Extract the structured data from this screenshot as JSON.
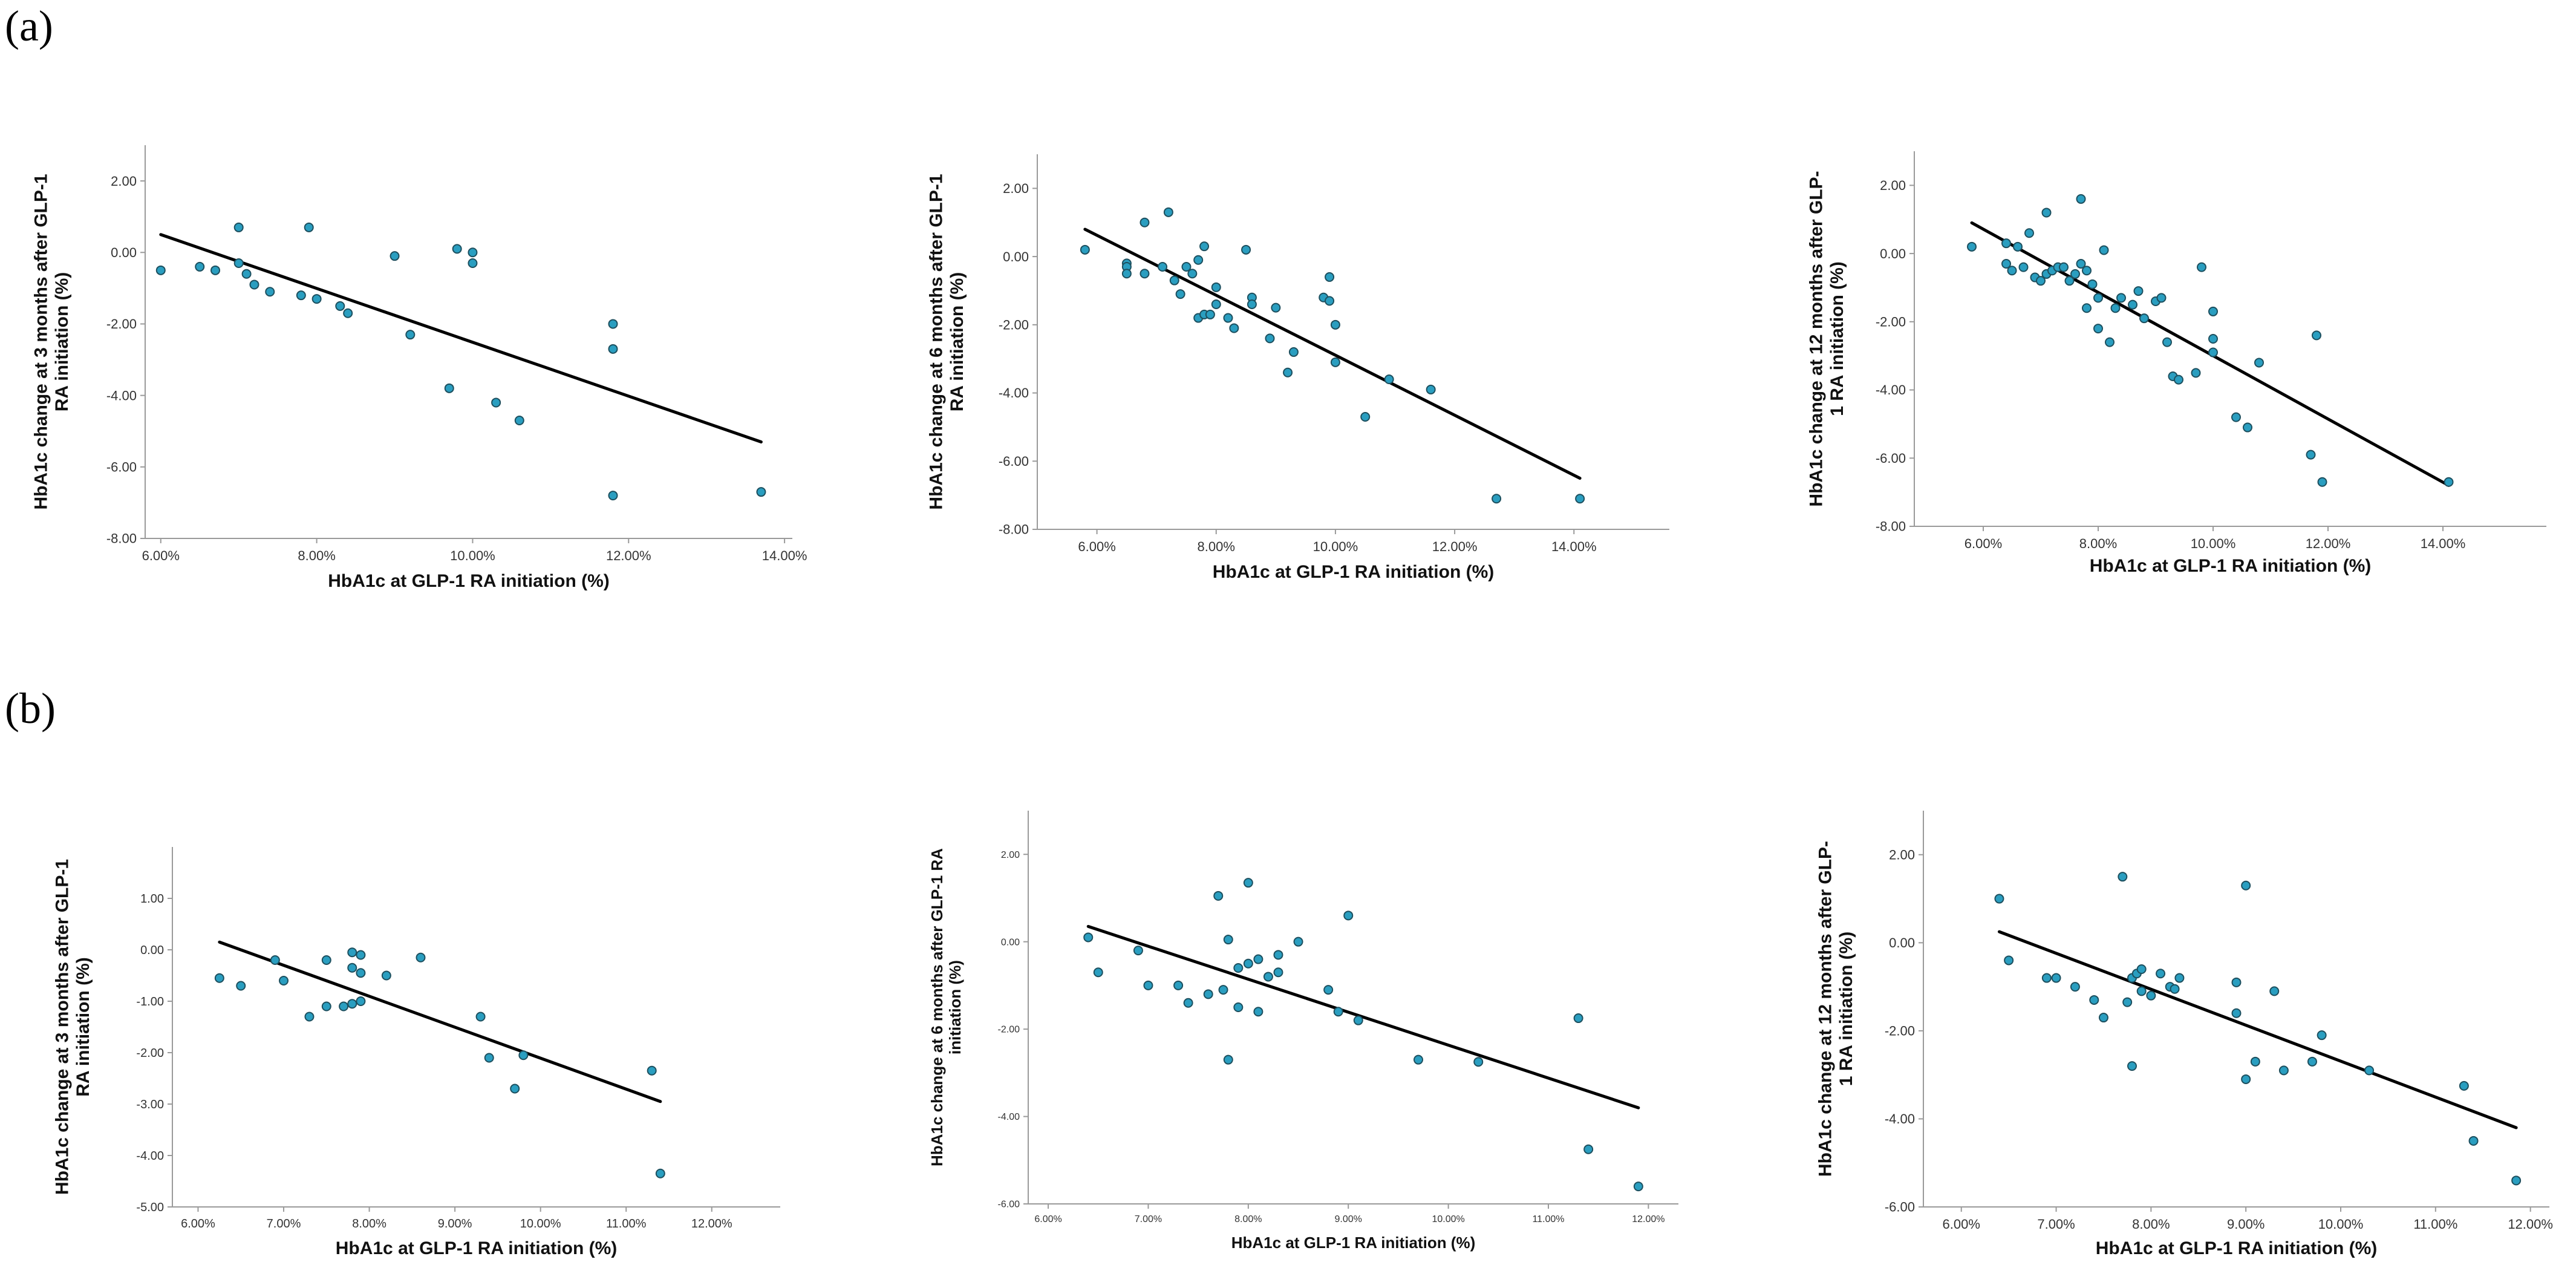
{
  "panel_labels": {
    "a": "(a)",
    "b": "(b)"
  },
  "colors": {
    "point_fill": "#2a9ec0",
    "point_stroke": "#1d4f5e",
    "fit_line": "#000000",
    "axis": "#9a9a9a"
  },
  "chart_data": [
    {
      "id": "a1",
      "type": "scatter",
      "xlabel": "HbA1c at GLP-1 RA initiation (%)",
      "ylabel": [
        "HbA1c change at 3 months after GLP-1",
        "RA initiation (%)"
      ],
      "xlim": [
        5.8,
        14.1
      ],
      "ylim": [
        -8.0,
        3.0
      ],
      "xticks": [
        6,
        8,
        10,
        12,
        14
      ],
      "xtick_labels": [
        "6.00%",
        "8.00%",
        "10.00%",
        "12.00%",
        "14.00%"
      ],
      "yticks": [
        2,
        0,
        -2,
        -4,
        -6,
        -8
      ],
      "ytick_labels": [
        "2.00",
        "0.00",
        "-2.00",
        "-4.00",
        "-6.00",
        "-8.00"
      ],
      "fit": {
        "x": [
          6.0,
          13.7
        ],
        "y": [
          0.5,
          -5.3
        ]
      },
      "x": [
        6.0,
        6.5,
        6.7,
        7.0,
        7.0,
        7.1,
        7.2,
        7.4,
        7.8,
        7.9,
        8.0,
        8.3,
        8.4,
        9.0,
        9.2,
        9.7,
        9.8,
        10.0,
        10.0,
        10.3,
        10.6,
        11.8,
        11.8,
        11.8,
        13.7
      ],
      "y": [
        -0.5,
        -0.4,
        -0.5,
        0.7,
        -0.3,
        -0.6,
        -0.9,
        -1.1,
        -1.2,
        0.7,
        -1.3,
        -1.5,
        -1.7,
        -0.1,
        -2.3,
        -3.8,
        0.1,
        0.0,
        -0.3,
        -4.2,
        -4.7,
        -2.0,
        -2.7,
        -6.8,
        -6.7
      ]
    },
    {
      "id": "a2",
      "type": "scatter",
      "xlabel": "HbA1c at GLP-1 RA initiation (%)",
      "ylabel": [
        "HbA1c change at 6 months after GLP-1",
        "RA initiation (%)"
      ],
      "xlim": [
        5.0,
        15.6
      ],
      "ylim": [
        -8.0,
        3.0
      ],
      "xticks": [
        6,
        8,
        10,
        12,
        14
      ],
      "xtick_labels": [
        "6.00%",
        "8.00%",
        "10.00%",
        "12.00%",
        "14.00%"
      ],
      "yticks": [
        2,
        0,
        -2,
        -4,
        -6,
        -8
      ],
      "ytick_labels": [
        "2.00",
        "0.00",
        "-2.00",
        "-4.00",
        "-6.00",
        "-8.00"
      ],
      "fit": {
        "x": [
          5.8,
          14.1
        ],
        "y": [
          0.8,
          -6.5
        ]
      },
      "x": [
        5.8,
        6.5,
        6.5,
        6.5,
        6.8,
        6.8,
        7.1,
        7.2,
        7.3,
        7.4,
        7.5,
        7.6,
        7.7,
        7.7,
        7.8,
        7.8,
        7.9,
        8.0,
        8.0,
        8.2,
        8.3,
        8.5,
        8.6,
        8.6,
        8.9,
        9.0,
        9.2,
        9.3,
        9.8,
        9.9,
        9.9,
        10.0,
        10.0,
        10.5,
        10.9,
        11.6,
        12.7,
        14.1
      ],
      "y": [
        0.2,
        -0.2,
        -0.3,
        -0.5,
        1.0,
        -0.5,
        -0.3,
        1.3,
        -0.7,
        -1.1,
        -0.3,
        -0.5,
        -0.1,
        -1.8,
        0.3,
        -1.7,
        -1.7,
        -1.4,
        -0.9,
        -1.8,
        -2.1,
        0.2,
        -1.2,
        -1.4,
        -2.4,
        -1.5,
        -3.4,
        -2.8,
        -1.2,
        -0.6,
        -1.3,
        -3.1,
        -2.0,
        -4.7,
        -3.6,
        -3.9,
        -7.1,
        -7.1
      ],
      "_note": "approximate values read from plot"
    },
    {
      "id": "a3",
      "type": "scatter",
      "xlabel": "HbA1c at GLP-1 RA initiation (%)",
      "ylabel": [
        "HbA1c change at 12 months after GLP-",
        "1 RA initiation (%)"
      ],
      "xlim": [
        4.8,
        15.8
      ],
      "ylim": [
        -8.0,
        3.0
      ],
      "xticks": [
        6,
        8,
        10,
        12,
        14
      ],
      "xtick_labels": [
        "6.00%",
        "8.00%",
        "10.00%",
        "12.00%",
        "14.00%"
      ],
      "yticks": [
        2,
        0,
        -2,
        -4,
        -6,
        -8
      ],
      "ytick_labels": [
        "2.00",
        "0.00",
        "-2.00",
        "-4.00",
        "-6.00",
        "-8.00"
      ],
      "fit": {
        "x": [
          5.8,
          14.1
        ],
        "y": [
          0.9,
          -6.8
        ]
      },
      "x": [
        5.8,
        6.4,
        6.4,
        6.5,
        6.6,
        6.7,
        6.8,
        6.9,
        7.0,
        7.1,
        7.1,
        7.2,
        7.3,
        7.4,
        7.5,
        7.6,
        7.7,
        7.7,
        7.8,
        7.8,
        7.9,
        8.0,
        8.0,
        8.1,
        8.2,
        8.3,
        8.4,
        8.6,
        8.7,
        8.8,
        9.0,
        9.1,
        9.2,
        9.3,
        9.4,
        9.7,
        9.8,
        10.0,
        10.0,
        10.0,
        10.4,
        10.6,
        10.8,
        11.7,
        11.8,
        11.9,
        14.1
      ],
      "y": [
        0.2,
        0.3,
        -0.3,
        -0.5,
        0.2,
        -0.4,
        0.6,
        -0.7,
        -0.8,
        1.2,
        -0.6,
        -0.5,
        -0.4,
        -0.4,
        -0.8,
        -0.6,
        1.6,
        -0.3,
        -0.5,
        -1.6,
        -0.9,
        -1.3,
        -2.2,
        0.1,
        -2.6,
        -1.6,
        -1.3,
        -1.5,
        -1.1,
        -1.9,
        -1.4,
        -1.3,
        -2.6,
        -3.6,
        -3.7,
        -3.5,
        -0.4,
        -1.7,
        -2.5,
        -2.9,
        -4.8,
        -5.1,
        -3.2,
        -5.9,
        -2.4,
        -6.7,
        -6.7
      ]
    },
    {
      "id": "b1",
      "type": "scatter",
      "xlabel": "HbA1c at GLP-1 RA initiation (%)",
      "ylabel": [
        "HbA1c change at 3 months after GLP-1",
        "RA initiation (%)"
      ],
      "xlim": [
        5.7,
        12.8
      ],
      "ylim": [
        -5.0,
        2.0
      ],
      "xticks": [
        6,
        7,
        8,
        9,
        10,
        11,
        12
      ],
      "xtick_labels": [
        "6.00%",
        "7.00%",
        "8.00%",
        "9.00%",
        "10.00%",
        "11.00%",
        "12.00%"
      ],
      "yticks": [
        1,
        0,
        -1,
        -2,
        -3,
        -4,
        -5
      ],
      "ytick_labels": [
        "1.00",
        "0.00",
        "-1.00",
        "-2.00",
        "-3.00",
        "-4.00",
        "-5.00"
      ],
      "fit": {
        "x": [
          6.25,
          11.4
        ],
        "y": [
          0.15,
          -2.95
        ]
      },
      "x": [
        6.25,
        6.5,
        6.9,
        7.0,
        7.3,
        7.5,
        7.5,
        7.7,
        7.8,
        7.8,
        7.8,
        7.9,
        7.9,
        7.9,
        8.2,
        8.6,
        9.3,
        9.4,
        9.7,
        9.8,
        11.3,
        11.4
      ],
      "y": [
        -0.55,
        -0.7,
        -0.2,
        -0.6,
        -1.3,
        -0.2,
        -1.1,
        -1.1,
        -1.05,
        -0.35,
        -0.05,
        -0.1,
        -0.45,
        -1.0,
        -0.5,
        -0.15,
        -1.3,
        -2.1,
        -2.7,
        -2.05,
        -2.35,
        -4.35
      ]
    },
    {
      "id": "b2",
      "type": "scatter",
      "xlabel": "HbA1c at GLP-1 RA initiation (%)",
      "ylabel": [
        "HbA1c change at 6 months after GLP-1 RA",
        "initiation (%)"
      ],
      "xlim": [
        5.8,
        12.3
      ],
      "ylim": [
        -6.0,
        3.0
      ],
      "xticks": [
        6,
        7,
        8,
        9,
        10,
        11,
        12
      ],
      "xtick_labels": [
        "6.00%",
        "7.00%",
        "8.00%",
        "9.00%",
        "10.00%",
        "11.00%",
        "12.00%"
      ],
      "yticks": [
        2,
        0,
        -2,
        -4,
        -6
      ],
      "ytick_labels": [
        "2.00",
        "0.00",
        "-2.00",
        "-4.00",
        "-6.00"
      ],
      "fit": {
        "x": [
          6.4,
          11.9
        ],
        "y": [
          0.35,
          -3.8
        ]
      },
      "x": [
        6.4,
        6.5,
        6.9,
        7.0,
        7.3,
        7.4,
        7.6,
        7.7,
        7.75,
        7.8,
        7.8,
        7.9,
        7.9,
        8.0,
        8.0,
        8.1,
        8.1,
        8.2,
        8.3,
        8.3,
        8.5,
        8.8,
        8.9,
        9.0,
        9.1,
        9.7,
        10.3,
        11.3,
        11.4,
        11.9
      ],
      "y": [
        0.1,
        -0.7,
        -0.2,
        -1.0,
        -1.0,
        -1.4,
        -1.2,
        1.05,
        -1.1,
        -2.7,
        0.05,
        -1.5,
        -0.6,
        -0.5,
        1.35,
        -0.4,
        -1.6,
        -0.8,
        -0.3,
        -0.7,
        0.0,
        -1.1,
        -1.6,
        0.6,
        -1.8,
        -2.7,
        -2.75,
        -1.75,
        -4.75,
        -5.6
      ]
    },
    {
      "id": "b3",
      "type": "scatter",
      "xlabel": "HbA1c at GLP-1 RA initiation (%)",
      "ylabel": [
        "HbA1c change at 12 months after GLP-",
        "1 RA initiation (%)"
      ],
      "xlim": [
        5.6,
        12.2
      ],
      "ylim": [
        -6.0,
        3.0
      ],
      "xticks": [
        6,
        7,
        8,
        9,
        10,
        11,
        12
      ],
      "xtick_labels": [
        "6.00%",
        "7.00%",
        "8.00%",
        "9.00%",
        "10.00%",
        "11.00%",
        "12.00%"
      ],
      "yticks": [
        2,
        0,
        -2,
        -4,
        -6
      ],
      "ytick_labels": [
        "2.00",
        "0.00",
        "-2.00",
        "-4.00",
        "-6.00"
      ],
      "fit": {
        "x": [
          6.4,
          11.85
        ],
        "y": [
          0.25,
          -4.2
        ]
      },
      "x": [
        6.4,
        6.5,
        6.9,
        7.0,
        7.2,
        7.4,
        7.5,
        7.7,
        7.75,
        7.8,
        7.8,
        7.85,
        7.9,
        7.9,
        8.0,
        8.1,
        8.2,
        8.25,
        8.3,
        8.9,
        8.9,
        9.0,
        9.0,
        9.1,
        9.3,
        9.4,
        9.7,
        9.8,
        10.3,
        11.3,
        11.4,
        11.85
      ],
      "y": [
        1.0,
        -0.4,
        -0.8,
        -0.8,
        -1.0,
        -1.3,
        -1.7,
        1.5,
        -1.35,
        -0.8,
        -2.8,
        -0.7,
        -1.1,
        -0.6,
        -1.2,
        -0.7,
        -1.0,
        -1.05,
        -0.8,
        -0.9,
        -1.6,
        1.3,
        -3.1,
        -2.7,
        -1.1,
        -2.9,
        -2.7,
        -2.1,
        -2.9,
        -3.25,
        -4.5,
        -5.4
      ]
    }
  ]
}
